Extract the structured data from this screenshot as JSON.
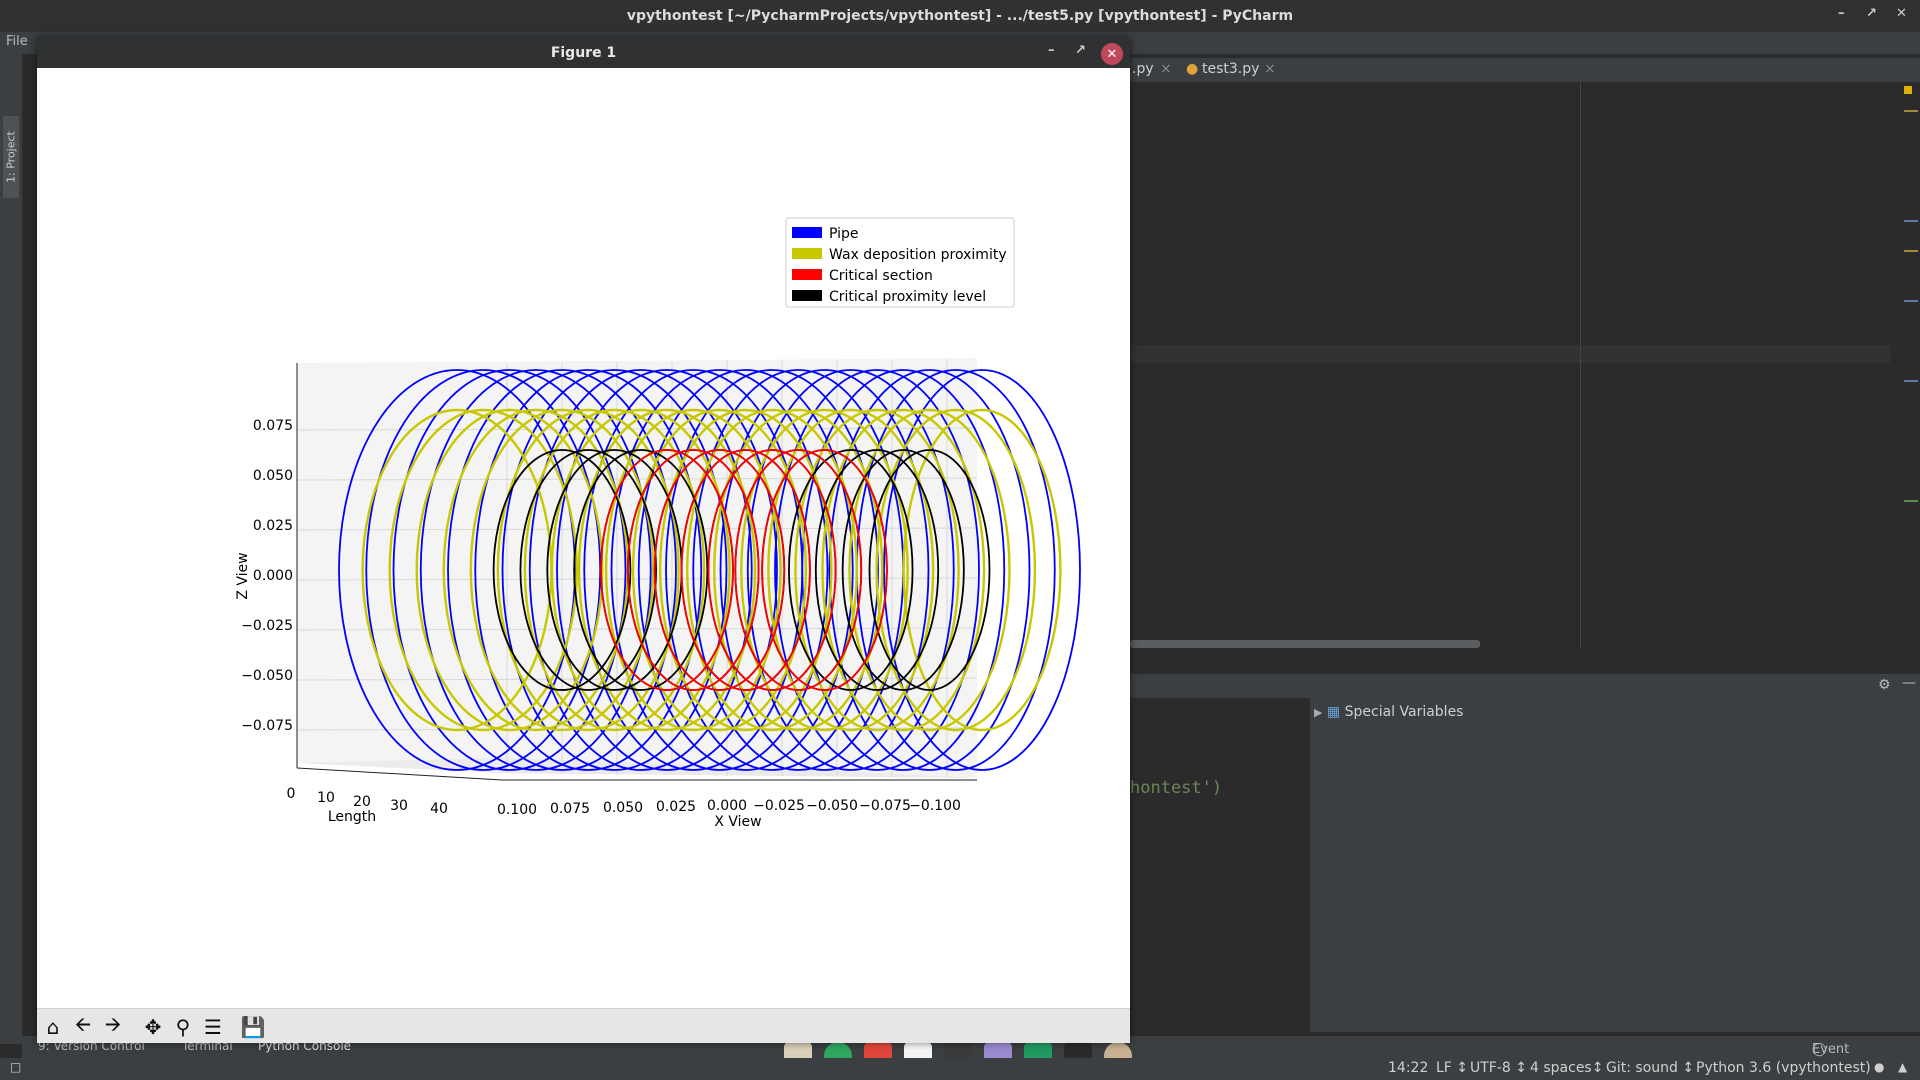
{
  "window": {
    "title": "vpythontest [~/PycharmProjects/vpythontest] - .../test5.py [vpythontest] - PyCharm"
  },
  "menu": {
    "file": "File"
  },
  "sidebar": {
    "project_tab": "1: Project"
  },
  "tabs": [
    {
      "label": ".py"
    },
    {
      "label": "test3.py"
    }
  ],
  "console": {
    "code_fragment": "hontest')",
    "special_variables": "Special Variables"
  },
  "bottom_tabs": [
    {
      "label": "9: Version Control"
    },
    {
      "label": "Terminal"
    },
    {
      "label": "Python Console"
    }
  ],
  "event_log": "Event Log",
  "status": {
    "position": "14:22",
    "line_sep": "LF ↕",
    "encoding": "UTF-8 ↕",
    "indent": "4 spaces↕",
    "git": "Git: sound ↕",
    "interpreter": "Python 3.6 (vpythontest)"
  },
  "figure": {
    "title": "Figure 1"
  },
  "chart_data": {
    "type": "3d-line",
    "xlabel": "X View",
    "ylabel": "Length",
    "zlabel": "Z View",
    "x_ticks": [
      "0.100",
      "0.075",
      "0.050",
      "0.025",
      "0.000",
      "−0.025",
      "−0.050",
      "−0.075",
      "−0.100"
    ],
    "length_ticks": [
      "0",
      "10",
      "20",
      "30",
      "40"
    ],
    "z_ticks": [
      "0.075",
      "0.050",
      "0.025",
      "0.000",
      "−0.025",
      "−0.050",
      "−0.075"
    ],
    "legend_position": "top-right",
    "series": [
      {
        "name": "Pipe",
        "color": "#0000ff",
        "radius": 0.1,
        "length_range": [
          0,
          50
        ]
      },
      {
        "name": "Wax deposition proximity",
        "color": "#c8c800",
        "radius": 0.08,
        "length_range": [
          0,
          50
        ]
      },
      {
        "name": "Critical section",
        "color": "#ff0000",
        "radius": 0.06,
        "length_range": [
          20,
          35
        ]
      },
      {
        "name": "Critical proximity level",
        "color": "#000000",
        "radius": 0.06,
        "length_range": [
          10,
          45
        ]
      }
    ]
  }
}
